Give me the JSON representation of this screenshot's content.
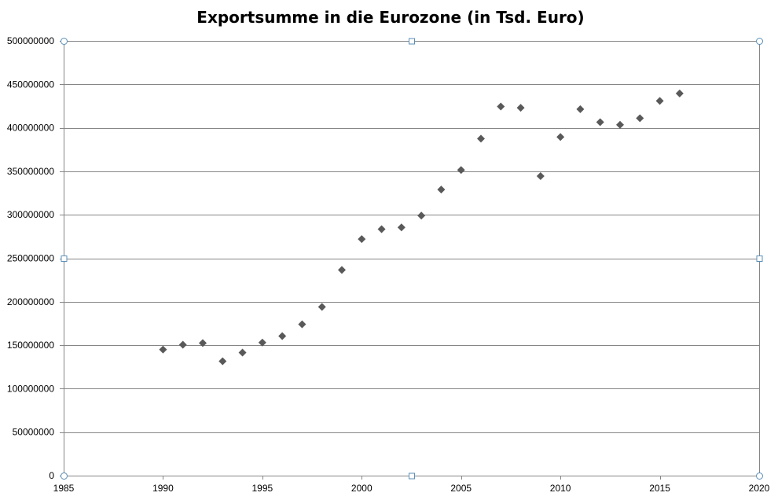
{
  "chart_data": {
    "type": "scatter",
    "title": "Exportsumme in die Eurozone (in Tsd. Euro)",
    "xlabel": "",
    "ylabel": "",
    "xlim": [
      1985,
      2020
    ],
    "ylim": [
      0,
      500000000
    ],
    "x_ticks": [
      1985,
      1990,
      1995,
      2000,
      2005,
      2010,
      2015,
      2020
    ],
    "x_tick_labels": [
      "1985",
      "1990",
      "1995",
      "2000",
      "2005",
      "2010",
      "2015",
      "2020"
    ],
    "y_ticks": [
      0,
      50000000,
      100000000,
      150000000,
      200000000,
      250000000,
      300000000,
      350000000,
      400000000,
      450000000,
      500000000
    ],
    "y_tick_labels": [
      "0",
      "50000000",
      "100000000",
      "150000000",
      "200000000",
      "250000000",
      "300000000",
      "350000000",
      "400000000",
      "450000000",
      "500000000"
    ],
    "grid": true,
    "marker": "diamond",
    "marker_color": "#595959",
    "series": [
      {
        "x": [
          1990,
          1991,
          1992,
          1993,
          1994,
          1995,
          1996,
          1997,
          1998,
          1999,
          2000,
          2001,
          2002,
          2003,
          2004,
          2005,
          2006,
          2007,
          2008,
          2009,
          2010,
          2011,
          2012,
          2013,
          2014,
          2015,
          2016
        ],
        "y": [
          145000000,
          150500000,
          152500000,
          131500000,
          141500000,
          153000000,
          160500000,
          174000000,
          194000000,
          236500000,
          272000000,
          283500000,
          285500000,
          299000000,
          329000000,
          351500000,
          387500000,
          424500000,
          423000000,
          344500000,
          389500000,
          421500000,
          406500000,
          403500000,
          411000000,
          431000000,
          439500000
        ]
      }
    ]
  },
  "colors": {
    "gridline": "#868686",
    "marker": "#595959",
    "selection_handle": "#5b8fb9"
  }
}
